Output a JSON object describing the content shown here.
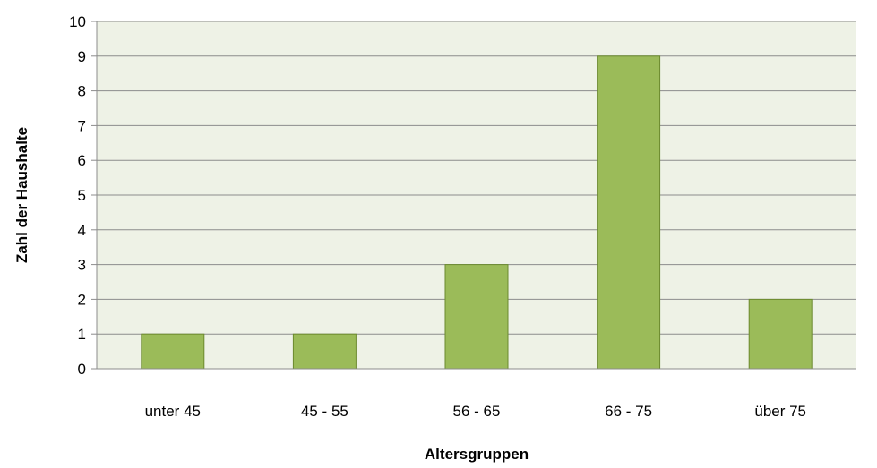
{
  "colors": {
    "plot_background": "#eef2e6",
    "bar_fill": "#9bbb59",
    "bar_stroke": "#6b8a2e",
    "gridline": "#8c8c8c",
    "axis_line": "#8c8c8c"
  },
  "chart_data": {
    "type": "bar",
    "categories": [
      "unter 45",
      "45 - 55",
      "56 - 65",
      "66 - 75",
      "über 75"
    ],
    "values": [
      1,
      1,
      3,
      9,
      2
    ],
    "xlabel": "Altersgruppen",
    "ylabel": "Zahl der Haushalte",
    "ylim": [
      0,
      10
    ],
    "yticks": [
      "0",
      "1",
      "2",
      "3",
      "4",
      "5",
      "6",
      "7",
      "8",
      "9",
      "10"
    ],
    "grid": true,
    "legend": "none"
  }
}
